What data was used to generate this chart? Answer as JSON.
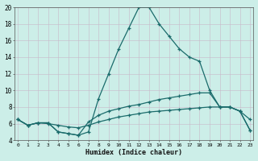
{
  "bg_color": "#cceee8",
  "grid_color": "#c8b8c8",
  "line_color": "#1a6b6b",
  "marker": "+",
  "xlabel": "Humidex (Indice chaleur)",
  "xlim": [
    0,
    23
  ],
  "ylim": [
    4,
    20
  ],
  "xticks": [
    0,
    1,
    2,
    3,
    4,
    5,
    6,
    7,
    8,
    9,
    10,
    11,
    12,
    13,
    14,
    15,
    16,
    17,
    18,
    19,
    20,
    21,
    22,
    23
  ],
  "yticks": [
    4,
    6,
    8,
    10,
    12,
    14,
    16,
    18,
    20
  ],
  "line1_x": [
    0,
    1,
    2,
    3,
    4,
    5,
    6,
    7,
    8,
    9,
    10,
    11,
    12,
    13,
    14,
    15,
    16,
    17,
    18,
    19,
    20,
    21,
    22,
    23
  ],
  "line1_y": [
    6.5,
    5.8,
    6.1,
    6.1,
    5.0,
    4.8,
    4.6,
    5.0,
    9.0,
    12.0,
    15.0,
    17.5,
    20.0,
    20.0,
    18.0,
    16.5,
    15.0,
    14.0,
    13.5,
    10.0,
    8.0,
    8.0,
    7.5,
    6.5
  ],
  "line2_x": [
    0,
    1,
    2,
    3,
    4,
    5,
    6,
    7,
    8,
    9,
    10,
    11,
    12,
    13,
    14,
    15,
    16,
    17,
    18,
    19,
    20,
    21,
    22,
    23
  ],
  "line2_y": [
    6.5,
    5.8,
    6.1,
    6.1,
    5.0,
    4.8,
    4.6,
    6.2,
    7.0,
    7.5,
    7.8,
    8.1,
    8.3,
    8.6,
    8.9,
    9.1,
    9.3,
    9.5,
    9.7,
    9.7,
    8.0,
    8.0,
    7.5,
    5.2
  ],
  "line3_x": [
    0,
    1,
    2,
    3,
    4,
    5,
    6,
    7,
    8,
    9,
    10,
    11,
    12,
    13,
    14,
    15,
    16,
    17,
    18,
    19,
    20,
    21,
    22,
    23
  ],
  "line3_y": [
    6.5,
    5.8,
    6.1,
    6.0,
    5.8,
    5.6,
    5.5,
    5.8,
    6.2,
    6.5,
    6.8,
    7.0,
    7.2,
    7.4,
    7.5,
    7.6,
    7.7,
    7.8,
    7.9,
    8.0,
    8.0,
    8.0,
    7.5,
    5.2
  ]
}
